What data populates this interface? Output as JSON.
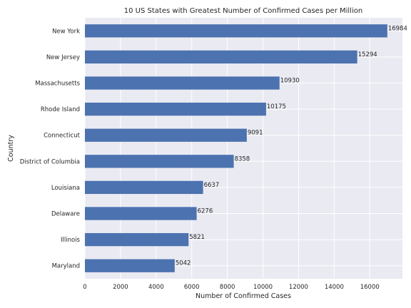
{
  "chart_data": {
    "type": "bar",
    "orientation": "horizontal",
    "title": "10 US States with Greatest Number of Confirmed Cases per Million",
    "xlabel": "Number of Confirmed Cases",
    "ylabel": "Country",
    "categories": [
      "New York",
      "New Jersey",
      "Massachusetts",
      "Rhode Island",
      "Connecticut",
      "District of Columbia",
      "Louisiana",
      "Delaware",
      "Illinois",
      "Maryland"
    ],
    "values": [
      16984,
      15294,
      10930,
      10175,
      9091,
      8358,
      6637,
      6276,
      5821,
      5042
    ],
    "xlim": [
      0,
      17833
    ],
    "xticks": [
      0,
      2000,
      4000,
      6000,
      8000,
      10000,
      12000,
      14000,
      16000
    ],
    "grid": true,
    "bar_color": "#4c72b0",
    "background_color": "#eaeaf2"
  }
}
